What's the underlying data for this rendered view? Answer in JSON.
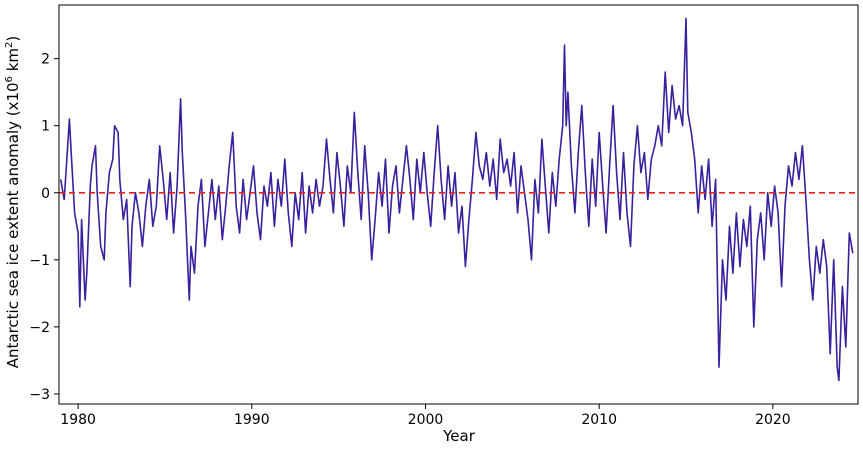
{
  "chart_data": {
    "type": "line",
    "title": "",
    "xlabel": "Year",
    "ylabel_main": "Antarctic sea ice extent anomaly (x10",
    "ylabel_sup6": "6",
    "ylabel_mid": " km",
    "ylabel_sup2": "2",
    "ylabel_end": ")",
    "xlim": [
      1978.9,
      2024.9
    ],
    "ylim": [
      -3.15,
      2.8
    ],
    "xticks": [
      1980,
      1990,
      2000,
      2010,
      2020
    ],
    "yticks": [
      -3,
      -2,
      -1,
      0,
      1,
      2
    ],
    "xtick_labels": [
      "1980",
      "1990",
      "2000",
      "2010",
      "2020"
    ],
    "ytick_labels": [
      "−3",
      "−2",
      "−1",
      "0",
      "1",
      "2"
    ],
    "grid": false,
    "reference_line": {
      "y": 0,
      "color": "#e8211a",
      "style": "dashed"
    },
    "series": [
      {
        "color": "#3a1f9e",
        "points": [
          [
            1979.0,
            0.2
          ],
          [
            1979.2,
            -0.1
          ],
          [
            1979.4,
            0.7
          ],
          [
            1979.5,
            1.1
          ],
          [
            1979.6,
            0.6
          ],
          [
            1979.8,
            -0.3
          ],
          [
            1980.0,
            -0.6
          ],
          [
            1980.1,
            -1.7
          ],
          [
            1980.2,
            -0.4
          ],
          [
            1980.4,
            -1.6
          ],
          [
            1980.5,
            -1.2
          ],
          [
            1980.7,
            0.1
          ],
          [
            1980.8,
            0.4
          ],
          [
            1981.0,
            0.7
          ],
          [
            1981.1,
            0.0
          ],
          [
            1981.3,
            -0.8
          ],
          [
            1981.5,
            -1.0
          ],
          [
            1981.6,
            -0.3
          ],
          [
            1981.8,
            0.3
          ],
          [
            1982.0,
            0.5
          ],
          [
            1982.1,
            1.0
          ],
          [
            1982.3,
            0.9
          ],
          [
            1982.4,
            0.2
          ],
          [
            1982.6,
            -0.4
          ],
          [
            1982.8,
            -0.1
          ],
          [
            1983.0,
            -1.4
          ],
          [
            1983.1,
            -0.5
          ],
          [
            1983.3,
            0.0
          ],
          [
            1983.5,
            -0.3
          ],
          [
            1983.7,
            -0.8
          ],
          [
            1983.9,
            -0.2
          ],
          [
            1984.1,
            0.2
          ],
          [
            1984.3,
            -0.5
          ],
          [
            1984.5,
            -0.2
          ],
          [
            1984.7,
            0.7
          ],
          [
            1984.9,
            0.2
          ],
          [
            1985.1,
            -0.4
          ],
          [
            1985.3,
            0.3
          ],
          [
            1985.5,
            -0.6
          ],
          [
            1985.7,
            0.1
          ],
          [
            1985.9,
            1.4
          ],
          [
            1986.0,
            0.6
          ],
          [
            1986.2,
            -0.4
          ],
          [
            1986.3,
            -1.0
          ],
          [
            1986.4,
            -1.6
          ],
          [
            1986.5,
            -0.8
          ],
          [
            1986.7,
            -1.2
          ],
          [
            1986.9,
            -0.2
          ],
          [
            1987.1,
            0.2
          ],
          [
            1987.3,
            -0.8
          ],
          [
            1987.5,
            -0.3
          ],
          [
            1987.7,
            0.2
          ],
          [
            1987.9,
            -0.4
          ],
          [
            1988.1,
            0.1
          ],
          [
            1988.3,
            -0.7
          ],
          [
            1988.5,
            -0.2
          ],
          [
            1988.7,
            0.4
          ],
          [
            1988.9,
            0.9
          ],
          [
            1989.1,
            -0.2
          ],
          [
            1989.3,
            -0.6
          ],
          [
            1989.5,
            0.2
          ],
          [
            1989.7,
            -0.4
          ],
          [
            1989.9,
            0.0
          ],
          [
            1990.1,
            0.4
          ],
          [
            1990.3,
            -0.3
          ],
          [
            1990.5,
            -0.7
          ],
          [
            1990.7,
            0.1
          ],
          [
            1990.9,
            -0.2
          ],
          [
            1991.1,
            0.3
          ],
          [
            1991.3,
            -0.5
          ],
          [
            1991.5,
            0.2
          ],
          [
            1991.7,
            -0.2
          ],
          [
            1991.9,
            0.5
          ],
          [
            1992.1,
            -0.3
          ],
          [
            1992.3,
            -0.8
          ],
          [
            1992.5,
            0.0
          ],
          [
            1992.7,
            -0.4
          ],
          [
            1992.9,
            0.3
          ],
          [
            1993.1,
            -0.6
          ],
          [
            1993.3,
            0.1
          ],
          [
            1993.5,
            -0.3
          ],
          [
            1993.7,
            0.2
          ],
          [
            1993.9,
            -0.2
          ],
          [
            1994.1,
            0.1
          ],
          [
            1994.3,
            0.8
          ],
          [
            1994.5,
            0.2
          ],
          [
            1994.7,
            -0.3
          ],
          [
            1994.9,
            0.6
          ],
          [
            1995.1,
            0.1
          ],
          [
            1995.3,
            -0.5
          ],
          [
            1995.5,
            0.4
          ],
          [
            1995.7,
            0.0
          ],
          [
            1995.9,
            1.2
          ],
          [
            1996.1,
            0.3
          ],
          [
            1996.3,
            -0.4
          ],
          [
            1996.5,
            0.7
          ],
          [
            1996.7,
            0.0
          ],
          [
            1996.9,
            -1.0
          ],
          [
            1997.1,
            -0.4
          ],
          [
            1997.3,
            0.3
          ],
          [
            1997.5,
            -0.2
          ],
          [
            1997.7,
            0.5
          ],
          [
            1997.9,
            -0.6
          ],
          [
            1998.1,
            0.1
          ],
          [
            1998.3,
            0.4
          ],
          [
            1998.5,
            -0.3
          ],
          [
            1998.7,
            0.2
          ],
          [
            1998.9,
            0.7
          ],
          [
            1999.1,
            0.2
          ],
          [
            1999.3,
            -0.4
          ],
          [
            1999.5,
            0.5
          ],
          [
            1999.7,
            0.0
          ],
          [
            1999.9,
            0.6
          ],
          [
            2000.1,
            0.0
          ],
          [
            2000.3,
            -0.5
          ],
          [
            2000.5,
            0.3
          ],
          [
            2000.7,
            1.0
          ],
          [
            2000.9,
            0.2
          ],
          [
            2001.1,
            -0.4
          ],
          [
            2001.3,
            0.4
          ],
          [
            2001.5,
            -0.2
          ],
          [
            2001.7,
            0.3
          ],
          [
            2001.9,
            -0.6
          ],
          [
            2002.1,
            -0.2
          ],
          [
            2002.3,
            -1.1
          ],
          [
            2002.5,
            -0.4
          ],
          [
            2002.7,
            0.2
          ],
          [
            2002.9,
            0.9
          ],
          [
            2003.1,
            0.4
          ],
          [
            2003.3,
            0.2
          ],
          [
            2003.5,
            0.6
          ],
          [
            2003.7,
            0.1
          ],
          [
            2003.9,
            0.5
          ],
          [
            2004.1,
            -0.1
          ],
          [
            2004.3,
            0.8
          ],
          [
            2004.5,
            0.3
          ],
          [
            2004.7,
            0.5
          ],
          [
            2004.9,
            0.1
          ],
          [
            2005.1,
            0.6
          ],
          [
            2005.3,
            -0.3
          ],
          [
            2005.5,
            0.4
          ],
          [
            2005.7,
            0.0
          ],
          [
            2005.9,
            -0.4
          ],
          [
            2006.1,
            -1.0
          ],
          [
            2006.3,
            0.2
          ],
          [
            2006.5,
            -0.3
          ],
          [
            2006.7,
            0.8
          ],
          [
            2006.9,
            0.1
          ],
          [
            2007.1,
            -0.6
          ],
          [
            2007.3,
            0.3
          ],
          [
            2007.5,
            -0.2
          ],
          [
            2007.7,
            0.5
          ],
          [
            2007.9,
            1.0
          ],
          [
            2008.0,
            2.2
          ],
          [
            2008.1,
            1.0
          ],
          [
            2008.2,
            1.5
          ],
          [
            2008.4,
            0.4
          ],
          [
            2008.6,
            -0.3
          ],
          [
            2008.8,
            0.6
          ],
          [
            2009.0,
            1.3
          ],
          [
            2009.2,
            0.3
          ],
          [
            2009.4,
            -0.5
          ],
          [
            2009.6,
            0.5
          ],
          [
            2009.8,
            -0.2
          ],
          [
            2010.0,
            0.9
          ],
          [
            2010.2,
            0.1
          ],
          [
            2010.4,
            -0.6
          ],
          [
            2010.6,
            0.4
          ],
          [
            2010.8,
            1.3
          ],
          [
            2011.0,
            0.3
          ],
          [
            2011.2,
            -0.4
          ],
          [
            2011.4,
            0.6
          ],
          [
            2011.6,
            -0.3
          ],
          [
            2011.8,
            -0.8
          ],
          [
            2012.0,
            0.4
          ],
          [
            2012.2,
            1.0
          ],
          [
            2012.4,
            0.3
          ],
          [
            2012.6,
            0.6
          ],
          [
            2012.8,
            -0.1
          ],
          [
            2013.0,
            0.5
          ],
          [
            2013.2,
            0.7
          ],
          [
            2013.4,
            1.0
          ],
          [
            2013.6,
            0.7
          ],
          [
            2013.8,
            1.8
          ],
          [
            2014.0,
            0.9
          ],
          [
            2014.2,
            1.6
          ],
          [
            2014.4,
            1.1
          ],
          [
            2014.6,
            1.3
          ],
          [
            2014.8,
            1.0
          ],
          [
            2015.0,
            2.6
          ],
          [
            2015.1,
            1.2
          ],
          [
            2015.3,
            0.9
          ],
          [
            2015.5,
            0.5
          ],
          [
            2015.7,
            -0.3
          ],
          [
            2015.9,
            0.4
          ],
          [
            2016.1,
            -0.1
          ],
          [
            2016.3,
            0.5
          ],
          [
            2016.5,
            -0.5
          ],
          [
            2016.7,
            0.2
          ],
          [
            2016.9,
            -2.6
          ],
          [
            2017.1,
            -1.0
          ],
          [
            2017.3,
            -1.6
          ],
          [
            2017.5,
            -0.5
          ],
          [
            2017.7,
            -1.2
          ],
          [
            2017.9,
            -0.3
          ],
          [
            2018.1,
            -1.1
          ],
          [
            2018.3,
            -0.4
          ],
          [
            2018.5,
            -0.8
          ],
          [
            2018.7,
            -0.2
          ],
          [
            2018.9,
            -2.0
          ],
          [
            2019.1,
            -0.7
          ],
          [
            2019.3,
            -0.3
          ],
          [
            2019.5,
            -1.0
          ],
          [
            2019.7,
            0.0
          ],
          [
            2019.9,
            -0.5
          ],
          [
            2020.1,
            0.1
          ],
          [
            2020.3,
            -0.3
          ],
          [
            2020.5,
            -1.4
          ],
          [
            2020.7,
            -0.2
          ],
          [
            2020.9,
            0.4
          ],
          [
            2021.1,
            0.1
          ],
          [
            2021.3,
            0.6
          ],
          [
            2021.5,
            0.2
          ],
          [
            2021.7,
            0.7
          ],
          [
            2021.9,
            -0.1
          ],
          [
            2022.1,
            -1.0
          ],
          [
            2022.3,
            -1.6
          ],
          [
            2022.5,
            -0.8
          ],
          [
            2022.7,
            -1.2
          ],
          [
            2022.9,
            -0.7
          ],
          [
            2023.1,
            -1.1
          ],
          [
            2023.3,
            -2.4
          ],
          [
            2023.5,
            -1.0
          ],
          [
            2023.7,
            -2.6
          ],
          [
            2023.8,
            -2.8
          ],
          [
            2024.0,
            -1.4
          ],
          [
            2024.2,
            -2.3
          ],
          [
            2024.4,
            -0.6
          ],
          [
            2024.6,
            -0.9
          ]
        ]
      }
    ]
  }
}
